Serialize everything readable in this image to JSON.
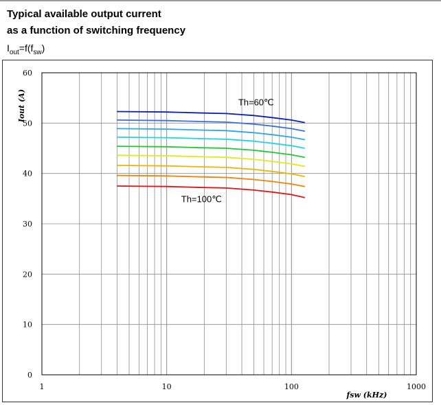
{
  "header": {
    "title_line1": "Typical available output current",
    "title_line2": "as a function of switching frequency",
    "formula": {
      "I": "I",
      "out": "out",
      "eq": "=f(f",
      "sw": "sw",
      "close": ")"
    }
  },
  "chart_data": {
    "type": "line",
    "xscale": "log",
    "xlim": [
      1,
      1000
    ],
    "ylim": [
      0,
      60
    ],
    "xticks": [
      1,
      10,
      100,
      1000
    ],
    "xtick_labels": [
      "1",
      "10",
      "100",
      "1000"
    ],
    "yticks": [
      0,
      10,
      20,
      30,
      40,
      50,
      60
    ],
    "ytick_labels": [
      "0",
      "10",
      "20",
      "30",
      "40",
      "50",
      "60"
    ],
    "xlabel": "fsw (kHz)",
    "ylabel": "Iout (A)",
    "grid": true,
    "x": [
      4,
      10,
      20,
      30,
      50,
      70,
      100,
      128
    ],
    "series": [
      {
        "color": "#0a1fb4",
        "values": [
          52.3,
          52.2,
          52.0,
          51.9,
          51.5,
          51.1,
          50.6,
          50.1
        ]
      },
      {
        "color": "#3a6fe0",
        "values": [
          50.6,
          50.5,
          50.3,
          50.2,
          49.8,
          49.4,
          48.9,
          48.4
        ]
      },
      {
        "color": "#2aa6ee",
        "values": [
          48.9,
          48.8,
          48.6,
          48.5,
          48.1,
          47.7,
          47.2,
          46.7
        ]
      },
      {
        "color": "#1fd4e6",
        "values": [
          47.2,
          47.1,
          46.9,
          46.8,
          46.4,
          46.0,
          45.5,
          45.0
        ]
      },
      {
        "color": "#22c832",
        "values": [
          45.4,
          45.3,
          45.1,
          45.0,
          44.6,
          44.2,
          43.7,
          43.2
        ]
      },
      {
        "color": "#e6e61a",
        "values": [
          43.6,
          43.5,
          43.3,
          43.2,
          42.8,
          42.4,
          41.9,
          41.4
        ]
      },
      {
        "color": "#f0b400",
        "values": [
          41.6,
          41.5,
          41.3,
          41.2,
          40.8,
          40.4,
          39.9,
          39.4
        ]
      },
      {
        "color": "#f08200",
        "values": [
          39.6,
          39.5,
          39.3,
          39.2,
          38.8,
          38.4,
          37.9,
          37.4
        ]
      },
      {
        "color": "#e01414",
        "values": [
          37.5,
          37.4,
          37.2,
          37.1,
          36.7,
          36.3,
          35.8,
          35.2
        ]
      }
    ],
    "annotations": [
      {
        "text": "Th=60℃",
        "x": 52,
        "y": 53.5
      },
      {
        "text": "Th=100℃",
        "x": 19,
        "y": 34.3
      }
    ]
  }
}
